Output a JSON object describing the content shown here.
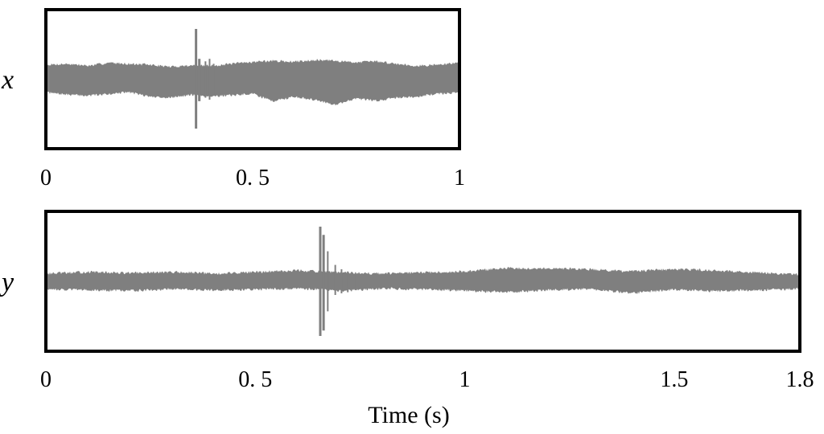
{
  "colors": {
    "signal": "#7f7f7f",
    "frame": "#000000",
    "background": "#ffffff"
  },
  "chart_data": [
    {
      "type": "line",
      "series_label": "x",
      "x_range": [
        0,
        1
      ],
      "tick_labels": [
        "0",
        "0. 5",
        "1"
      ],
      "tick_values": [
        0,
        0.5,
        1
      ],
      "xlabel": "",
      "envelope": {
        "t": [
          0,
          0.05,
          0.1,
          0.15,
          0.2,
          0.25,
          0.3,
          0.35,
          0.4,
          0.45,
          0.5,
          0.55,
          0.6,
          0.65,
          0.7,
          0.75,
          0.8,
          0.85,
          0.9,
          0.95,
          1
        ],
        "upper": [
          0.28,
          0.3,
          0.26,
          0.32,
          0.3,
          0.28,
          0.24,
          0.27,
          0.26,
          0.3,
          0.34,
          0.36,
          0.34,
          0.38,
          0.36,
          0.33,
          0.35,
          0.3,
          0.26,
          0.28,
          0.32
        ],
        "lower": [
          -0.28,
          -0.32,
          -0.34,
          -0.3,
          -0.27,
          -0.36,
          -0.38,
          -0.32,
          -0.35,
          -0.33,
          -0.3,
          -0.45,
          -0.36,
          -0.42,
          -0.52,
          -0.4,
          -0.44,
          -0.38,
          -0.36,
          -0.3,
          -0.28
        ]
      },
      "spikes": [
        {
          "t": 0.362,
          "hi": 1.0,
          "lo": -1.0
        },
        {
          "t": 0.37,
          "hi": 0.4,
          "lo": -0.45
        },
        {
          "t": 0.385,
          "hi": 0.35,
          "lo": -0.38
        },
        {
          "t": 0.395,
          "hi": 0.4,
          "lo": -0.42
        },
        {
          "t": 0.405,
          "hi": 0.3,
          "lo": -0.33
        }
      ],
      "noise_seed": 7
    },
    {
      "type": "line",
      "series_label": "y",
      "x_range": [
        0,
        1.8
      ],
      "tick_labels": [
        "0",
        "0. 5",
        "1",
        "1.5",
        "1.8"
      ],
      "tick_values": [
        0,
        0.5,
        1,
        1.5,
        1.8
      ],
      "xlabel": "Time (s)",
      "envelope": {
        "t": [
          0,
          0.1,
          0.2,
          0.3,
          0.4,
          0.5,
          0.6,
          0.65,
          0.7,
          0.8,
          0.9,
          1.0,
          1.1,
          1.2,
          1.3,
          1.4,
          1.5,
          1.6,
          1.7,
          1.8
        ],
        "upper": [
          0.14,
          0.17,
          0.15,
          0.17,
          0.14,
          0.17,
          0.2,
          0.18,
          0.16,
          0.14,
          0.16,
          0.18,
          0.24,
          0.24,
          0.22,
          0.18,
          0.22,
          0.2,
          0.16,
          0.12
        ],
        "lower": [
          -0.14,
          -0.16,
          -0.17,
          -0.14,
          -0.16,
          -0.15,
          -0.13,
          -0.15,
          -0.18,
          -0.13,
          -0.15,
          -0.17,
          -0.2,
          -0.16,
          -0.14,
          -0.22,
          -0.15,
          -0.18,
          -0.16,
          -0.14
        ]
      },
      "spikes": [
        {
          "t": 0.654,
          "hi": 1.0,
          "lo": -1.0
        },
        {
          "t": 0.662,
          "hi": 0.85,
          "lo": -0.9
        },
        {
          "t": 0.672,
          "hi": 0.55,
          "lo": -0.55
        },
        {
          "t": 0.69,
          "hi": 0.3,
          "lo": -0.25
        },
        {
          "t": 0.705,
          "hi": 0.22,
          "lo": -0.22
        },
        {
          "t": 0.72,
          "hi": 0.18,
          "lo": -0.2
        },
        {
          "t": 0.74,
          "hi": 0.14,
          "lo": -0.16
        }
      ],
      "noise_seed": 13
    }
  ]
}
